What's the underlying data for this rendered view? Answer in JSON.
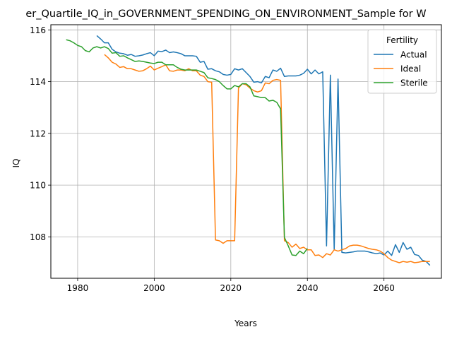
{
  "chart_data": {
    "type": "line",
    "title": "er_Quartile_IQ_in_GOVERNMENT_SPENDING_ON_ENVIRONMENT_Sample for W",
    "xlabel": "Years",
    "ylabel": "IQ",
    "xlim": [
      1973,
      2075
    ],
    "ylim": [
      106.4,
      116.2
    ],
    "xticks": [
      1980,
      2000,
      2020,
      2040,
      2060
    ],
    "yticks": [
      108,
      110,
      112,
      114,
      116
    ],
    "grid": true,
    "legend": {
      "title": "Fertility",
      "placement": "top-right"
    },
    "series": [
      {
        "name": "Actual",
        "color": "#1f77b4",
        "points": [
          [
            1985,
            115.78
          ],
          [
            1986,
            115.65
          ],
          [
            1987,
            115.5
          ],
          [
            1988,
            115.5
          ],
          [
            1989,
            115.25
          ],
          [
            1990,
            115.15
          ],
          [
            1991,
            115.1
          ],
          [
            1992,
            115.08
          ],
          [
            1993,
            115.02
          ],
          [
            1994,
            115.05
          ],
          [
            1995,
            114.98
          ],
          [
            1996,
            115.0
          ],
          [
            1997,
            115.03
          ],
          [
            1998,
            115.08
          ],
          [
            1999,
            115.12
          ],
          [
            2000,
            115.0
          ],
          [
            2001,
            115.18
          ],
          [
            2002,
            115.16
          ],
          [
            2003,
            115.22
          ],
          [
            2004,
            115.12
          ],
          [
            2005,
            115.15
          ],
          [
            2006,
            115.12
          ],
          [
            2007,
            115.08
          ],
          [
            2008,
            115.0
          ],
          [
            2009,
            115.0
          ],
          [
            2010,
            115.0
          ],
          [
            2011,
            114.98
          ],
          [
            2012,
            114.75
          ],
          [
            2013,
            114.78
          ],
          [
            2014,
            114.48
          ],
          [
            2015,
            114.5
          ],
          [
            2016,
            114.42
          ],
          [
            2017,
            114.38
          ],
          [
            2018,
            114.28
          ],
          [
            2019,
            114.25
          ],
          [
            2020,
            114.28
          ],
          [
            2021,
            114.5
          ],
          [
            2022,
            114.45
          ],
          [
            2023,
            114.5
          ],
          [
            2024,
            114.35
          ],
          [
            2025,
            114.2
          ],
          [
            2026,
            113.98
          ],
          [
            2027,
            114.0
          ],
          [
            2028,
            113.95
          ],
          [
            2029,
            114.2
          ],
          [
            2030,
            114.15
          ],
          [
            2031,
            114.45
          ],
          [
            2032,
            114.4
          ],
          [
            2033,
            114.52
          ],
          [
            2034,
            114.2
          ],
          [
            2035,
            114.22
          ],
          [
            2036,
            114.22
          ],
          [
            2037,
            114.22
          ],
          [
            2038,
            114.25
          ],
          [
            2039,
            114.32
          ],
          [
            2040,
            114.48
          ],
          [
            2041,
            114.3
          ],
          [
            2042,
            114.45
          ],
          [
            2043,
            114.3
          ],
          [
            2044,
            114.38
          ],
          [
            2045,
            107.65
          ],
          [
            2046,
            114.25
          ],
          [
            2047,
            107.5
          ],
          [
            2048,
            114.1
          ],
          [
            2049,
            107.4
          ],
          [
            2050,
            107.38
          ],
          [
            2051,
            107.4
          ],
          [
            2052,
            107.42
          ],
          [
            2053,
            107.45
          ],
          [
            2054,
            107.45
          ],
          [
            2055,
            107.45
          ],
          [
            2056,
            107.42
          ],
          [
            2057,
            107.38
          ],
          [
            2058,
            107.35
          ],
          [
            2059,
            107.38
          ],
          [
            2060,
            107.3
          ],
          [
            2061,
            107.45
          ],
          [
            2062,
            107.28
          ],
          [
            2063,
            107.7
          ],
          [
            2064,
            107.4
          ],
          [
            2065,
            107.78
          ],
          [
            2066,
            107.52
          ],
          [
            2067,
            107.6
          ],
          [
            2068,
            107.32
          ],
          [
            2069,
            107.28
          ],
          [
            2070,
            107.1
          ],
          [
            2071,
            107.05
          ],
          [
            2072,
            106.9
          ]
        ]
      },
      {
        "name": "Ideal",
        "color": "#ff7f0e",
        "points": [
          [
            1987,
            115.05
          ],
          [
            1988,
            114.92
          ],
          [
            1989,
            114.75
          ],
          [
            1990,
            114.68
          ],
          [
            1991,
            114.55
          ],
          [
            1992,
            114.58
          ],
          [
            1993,
            114.5
          ],
          [
            1994,
            114.5
          ],
          [
            1995,
            114.45
          ],
          [
            1996,
            114.4
          ],
          [
            1997,
            114.42
          ],
          [
            1998,
            114.5
          ],
          [
            1999,
            114.6
          ],
          [
            2000,
            114.45
          ],
          [
            2001,
            114.52
          ],
          [
            2002,
            114.58
          ],
          [
            2003,
            114.65
          ],
          [
            2004,
            114.42
          ],
          [
            2005,
            114.4
          ],
          [
            2006,
            114.45
          ],
          [
            2007,
            114.45
          ],
          [
            2008,
            114.42
          ],
          [
            2009,
            114.5
          ],
          [
            2010,
            114.42
          ],
          [
            2011,
            114.42
          ],
          [
            2012,
            114.25
          ],
          [
            2013,
            114.2
          ],
          [
            2014,
            114.0
          ],
          [
            2015,
            113.98
          ],
          [
            2016,
            107.88
          ],
          [
            2017,
            107.85
          ],
          [
            2018,
            107.75
          ],
          [
            2019,
            107.85
          ],
          [
            2020,
            107.85
          ],
          [
            2021,
            107.85
          ],
          [
            2022,
            113.75
          ],
          [
            2023,
            113.92
          ],
          [
            2024,
            113.88
          ],
          [
            2025,
            113.75
          ],
          [
            2026,
            113.65
          ],
          [
            2027,
            113.6
          ],
          [
            2028,
            113.65
          ],
          [
            2029,
            113.95
          ],
          [
            2030,
            113.92
          ],
          [
            2031,
            114.05
          ],
          [
            2032,
            114.08
          ],
          [
            2033,
            114.05
          ],
          [
            2034,
            107.85
          ],
          [
            2035,
            107.78
          ],
          [
            2036,
            107.6
          ],
          [
            2037,
            107.72
          ],
          [
            2038,
            107.55
          ],
          [
            2039,
            107.6
          ],
          [
            2040,
            107.5
          ],
          [
            2041,
            107.5
          ],
          [
            2042,
            107.28
          ],
          [
            2043,
            107.3
          ],
          [
            2044,
            107.2
          ],
          [
            2045,
            107.35
          ],
          [
            2046,
            107.3
          ],
          [
            2047,
            107.5
          ],
          [
            2048,
            107.45
          ],
          [
            2049,
            107.5
          ],
          [
            2050,
            107.55
          ],
          [
            2051,
            107.65
          ],
          [
            2052,
            107.68
          ],
          [
            2053,
            107.68
          ],
          [
            2054,
            107.65
          ],
          [
            2055,
            107.6
          ],
          [
            2056,
            107.55
          ],
          [
            2057,
            107.52
          ],
          [
            2058,
            107.5
          ],
          [
            2059,
            107.45
          ],
          [
            2060,
            107.35
          ],
          [
            2061,
            107.2
          ],
          [
            2062,
            107.1
          ],
          [
            2063,
            107.05
          ],
          [
            2064,
            107.0
          ],
          [
            2065,
            107.05
          ],
          [
            2066,
            107.02
          ],
          [
            2067,
            107.05
          ],
          [
            2068,
            107.0
          ],
          [
            2069,
            107.02
          ],
          [
            2070,
            107.05
          ],
          [
            2071,
            107.05
          ],
          [
            2072,
            107.05
          ]
        ]
      },
      {
        "name": "Sterile",
        "color": "#2ca02c",
        "points": [
          [
            1977,
            115.62
          ],
          [
            1978,
            115.58
          ],
          [
            1979,
            115.5
          ],
          [
            1980,
            115.4
          ],
          [
            1981,
            115.35
          ],
          [
            1982,
            115.2
          ],
          [
            1983,
            115.15
          ],
          [
            1984,
            115.3
          ],
          [
            1985,
            115.35
          ],
          [
            1986,
            115.3
          ],
          [
            1987,
            115.35
          ],
          [
            1988,
            115.28
          ],
          [
            1989,
            115.1
          ],
          [
            1990,
            115.12
          ],
          [
            1991,
            114.98
          ],
          [
            1992,
            115.0
          ],
          [
            1993,
            114.92
          ],
          [
            1994,
            114.85
          ],
          [
            1995,
            114.78
          ],
          [
            1996,
            114.8
          ],
          [
            1997,
            114.78
          ],
          [
            1998,
            114.75
          ],
          [
            1999,
            114.72
          ],
          [
            2000,
            114.7
          ],
          [
            2001,
            114.75
          ],
          [
            2002,
            114.75
          ],
          [
            2003,
            114.65
          ],
          [
            2004,
            114.65
          ],
          [
            2005,
            114.65
          ],
          [
            2006,
            114.55
          ],
          [
            2007,
            114.48
          ],
          [
            2008,
            114.45
          ],
          [
            2009,
            114.45
          ],
          [
            2010,
            114.45
          ],
          [
            2011,
            114.45
          ],
          [
            2012,
            114.4
          ],
          [
            2013,
            114.35
          ],
          [
            2014,
            114.15
          ],
          [
            2015,
            114.12
          ],
          [
            2016,
            114.08
          ],
          [
            2017,
            114.0
          ],
          [
            2018,
            113.85
          ],
          [
            2019,
            113.72
          ],
          [
            2020,
            113.72
          ],
          [
            2021,
            113.85
          ],
          [
            2022,
            113.8
          ],
          [
            2023,
            113.92
          ],
          [
            2024,
            113.92
          ],
          [
            2025,
            113.8
          ],
          [
            2026,
            113.45
          ],
          [
            2027,
            113.42
          ],
          [
            2028,
            113.38
          ],
          [
            2029,
            113.38
          ],
          [
            2030,
            113.25
          ],
          [
            2031,
            113.28
          ],
          [
            2032,
            113.2
          ],
          [
            2033,
            112.95
          ],
          [
            2034,
            107.98
          ],
          [
            2035,
            107.65
          ],
          [
            2036,
            107.3
          ],
          [
            2037,
            107.28
          ],
          [
            2038,
            107.45
          ],
          [
            2039,
            107.35
          ],
          [
            2040,
            107.55
          ]
        ]
      }
    ]
  }
}
